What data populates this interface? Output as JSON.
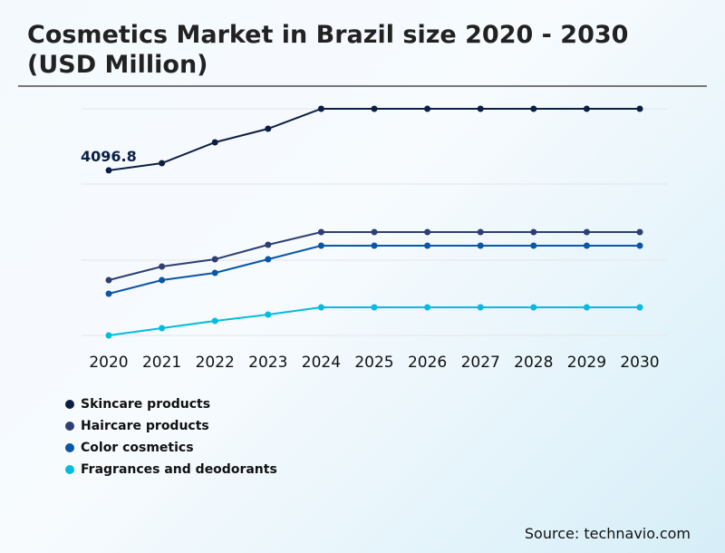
{
  "title": "Cosmetics Market in Brazil size 2020 - 2030 (USD Million)",
  "source": "Source: technavio.com",
  "chart_data": {
    "type": "line",
    "title": "Cosmetics Market in Brazil size 2020 - 2030 (USD Million)",
    "xlabel": "",
    "ylabel": "",
    "x": [
      "2020",
      "2021",
      "2022",
      "2023",
      "2024",
      "2025",
      "2026",
      "2027",
      "2028",
      "2029",
      "2030"
    ],
    "ylim": [
      0,
      5625
    ],
    "grid": true,
    "legend_position": "bottom-left",
    "annotations": [
      {
        "series": "Skincare products",
        "x": "2020",
        "text": "4096.8"
      }
    ],
    "series": [
      {
        "name": "Skincare products",
        "color": "#0b1f45",
        "values": [
          4096.8,
          4275,
          4793,
          5130,
          5625,
          5625,
          5625,
          5625,
          5625,
          5625,
          5625
        ]
      },
      {
        "name": "Haircare products",
        "color": "#2e3f73",
        "values": [
          1373,
          1710,
          1890,
          2250,
          2565,
          2565,
          2565,
          2565,
          2565,
          2565,
          2565
        ]
      },
      {
        "name": "Color cosmetics",
        "color": "#0a56a8",
        "values": [
          1035,
          1373,
          1553,
          1890,
          2228,
          2228,
          2228,
          2228,
          2228,
          2228,
          2228
        ]
      },
      {
        "name": "Fragrances and deodorants",
        "color": "#00bde0",
        "values": [
          0,
          180,
          360,
          518,
          698,
          698,
          698,
          698,
          698,
          698,
          698
        ]
      }
    ]
  }
}
